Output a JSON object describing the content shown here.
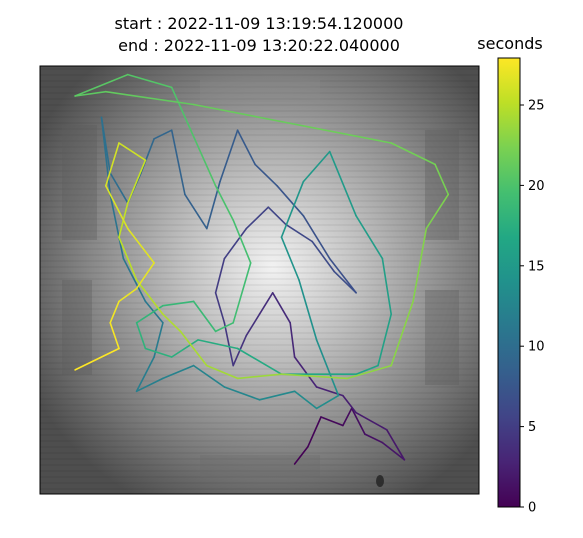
{
  "chart_data": {
    "type": "line",
    "title_lines": [
      "start : 2022-11-09 13:19:54.120000",
      "end : 2022-11-09 13:20:22.040000"
    ],
    "colorbar": {
      "label": "seconds",
      "range": [
        0,
        27.92
      ],
      "ticks": [
        0,
        5,
        10,
        15,
        20,
        25
      ],
      "colormap": "viridis"
    },
    "background": "grayscale arena photo, bright center",
    "series": [
      {
        "trajectory_xy": [
          [
            0.58,
            0.93
          ],
          [
            0.61,
            0.89
          ],
          [
            0.64,
            0.82
          ],
          [
            0.69,
            0.84
          ],
          [
            0.71,
            0.8
          ],
          [
            0.74,
            0.86
          ],
          [
            0.78,
            0.88
          ],
          [
            0.83,
            0.92
          ],
          [
            0.79,
            0.85
          ],
          [
            0.72,
            0.81
          ],
          [
            0.69,
            0.77
          ],
          [
            0.63,
            0.75
          ],
          [
            0.58,
            0.68
          ],
          [
            0.57,
            0.6
          ],
          [
            0.53,
            0.53
          ],
          [
            0.5,
            0.58
          ],
          [
            0.47,
            0.63
          ],
          [
            0.44,
            0.7
          ],
          [
            0.42,
            0.6
          ],
          [
            0.4,
            0.53
          ],
          [
            0.42,
            0.45
          ],
          [
            0.47,
            0.38
          ],
          [
            0.52,
            0.33
          ],
          [
            0.56,
            0.37
          ],
          [
            0.62,
            0.41
          ],
          [
            0.67,
            0.48
          ],
          [
            0.72,
            0.53
          ],
          [
            0.66,
            0.45
          ],
          [
            0.6,
            0.35
          ],
          [
            0.54,
            0.28
          ],
          [
            0.49,
            0.23
          ],
          [
            0.45,
            0.15
          ],
          [
            0.41,
            0.27
          ],
          [
            0.38,
            0.38
          ],
          [
            0.33,
            0.3
          ],
          [
            0.3,
            0.15
          ],
          [
            0.26,
            0.17
          ],
          [
            0.23,
            0.25
          ],
          [
            0.2,
            0.32
          ],
          [
            0.16,
            0.25
          ],
          [
            0.14,
            0.12
          ],
          [
            0.16,
            0.3
          ],
          [
            0.19,
            0.45
          ],
          [
            0.24,
            0.55
          ],
          [
            0.28,
            0.6
          ],
          [
            0.26,
            0.68
          ],
          [
            0.22,
            0.76
          ],
          [
            0.28,
            0.73
          ],
          [
            0.35,
            0.7
          ],
          [
            0.42,
            0.75
          ],
          [
            0.5,
            0.78
          ],
          [
            0.58,
            0.76
          ],
          [
            0.63,
            0.8
          ],
          [
            0.68,
            0.77
          ],
          [
            0.63,
            0.64
          ],
          [
            0.59,
            0.5
          ],
          [
            0.55,
            0.4
          ],
          [
            0.6,
            0.27
          ],
          [
            0.66,
            0.2
          ],
          [
            0.72,
            0.35
          ],
          [
            0.78,
            0.45
          ],
          [
            0.8,
            0.58
          ],
          [
            0.77,
            0.7
          ],
          [
            0.72,
            0.72
          ],
          [
            0.65,
            0.72
          ],
          [
            0.55,
            0.72
          ],
          [
            0.45,
            0.66
          ],
          [
            0.36,
            0.64
          ],
          [
            0.3,
            0.68
          ],
          [
            0.24,
            0.66
          ],
          [
            0.22,
            0.6
          ],
          [
            0.28,
            0.56
          ],
          [
            0.35,
            0.55
          ],
          [
            0.4,
            0.62
          ],
          [
            0.44,
            0.6
          ],
          [
            0.48,
            0.46
          ],
          [
            0.44,
            0.36
          ],
          [
            0.4,
            0.28
          ],
          [
            0.3,
            0.05
          ],
          [
            0.2,
            0.02
          ],
          [
            0.08,
            0.07
          ],
          [
            0.15,
            0.06
          ],
          [
            0.35,
            0.09
          ],
          [
            0.6,
            0.14
          ],
          [
            0.8,
            0.18
          ],
          [
            0.9,
            0.23
          ],
          [
            0.93,
            0.3
          ],
          [
            0.88,
            0.38
          ],
          [
            0.85,
            0.55
          ],
          [
            0.8,
            0.7
          ],
          [
            0.7,
            0.73
          ],
          [
            0.55,
            0.72
          ],
          [
            0.45,
            0.73
          ],
          [
            0.38,
            0.7
          ],
          [
            0.32,
            0.62
          ],
          [
            0.28,
            0.58
          ],
          [
            0.22,
            0.5
          ],
          [
            0.18,
            0.4
          ],
          [
            0.2,
            0.32
          ],
          [
            0.24,
            0.22
          ],
          [
            0.18,
            0.18
          ],
          [
            0.15,
            0.28
          ],
          [
            0.2,
            0.38
          ],
          [
            0.26,
            0.46
          ],
          [
            0.22,
            0.52
          ],
          [
            0.18,
            0.55
          ],
          [
            0.16,
            0.6
          ],
          [
            0.18,
            0.66
          ],
          [
            0.08,
            0.71
          ]
        ]
      }
    ]
  }
}
